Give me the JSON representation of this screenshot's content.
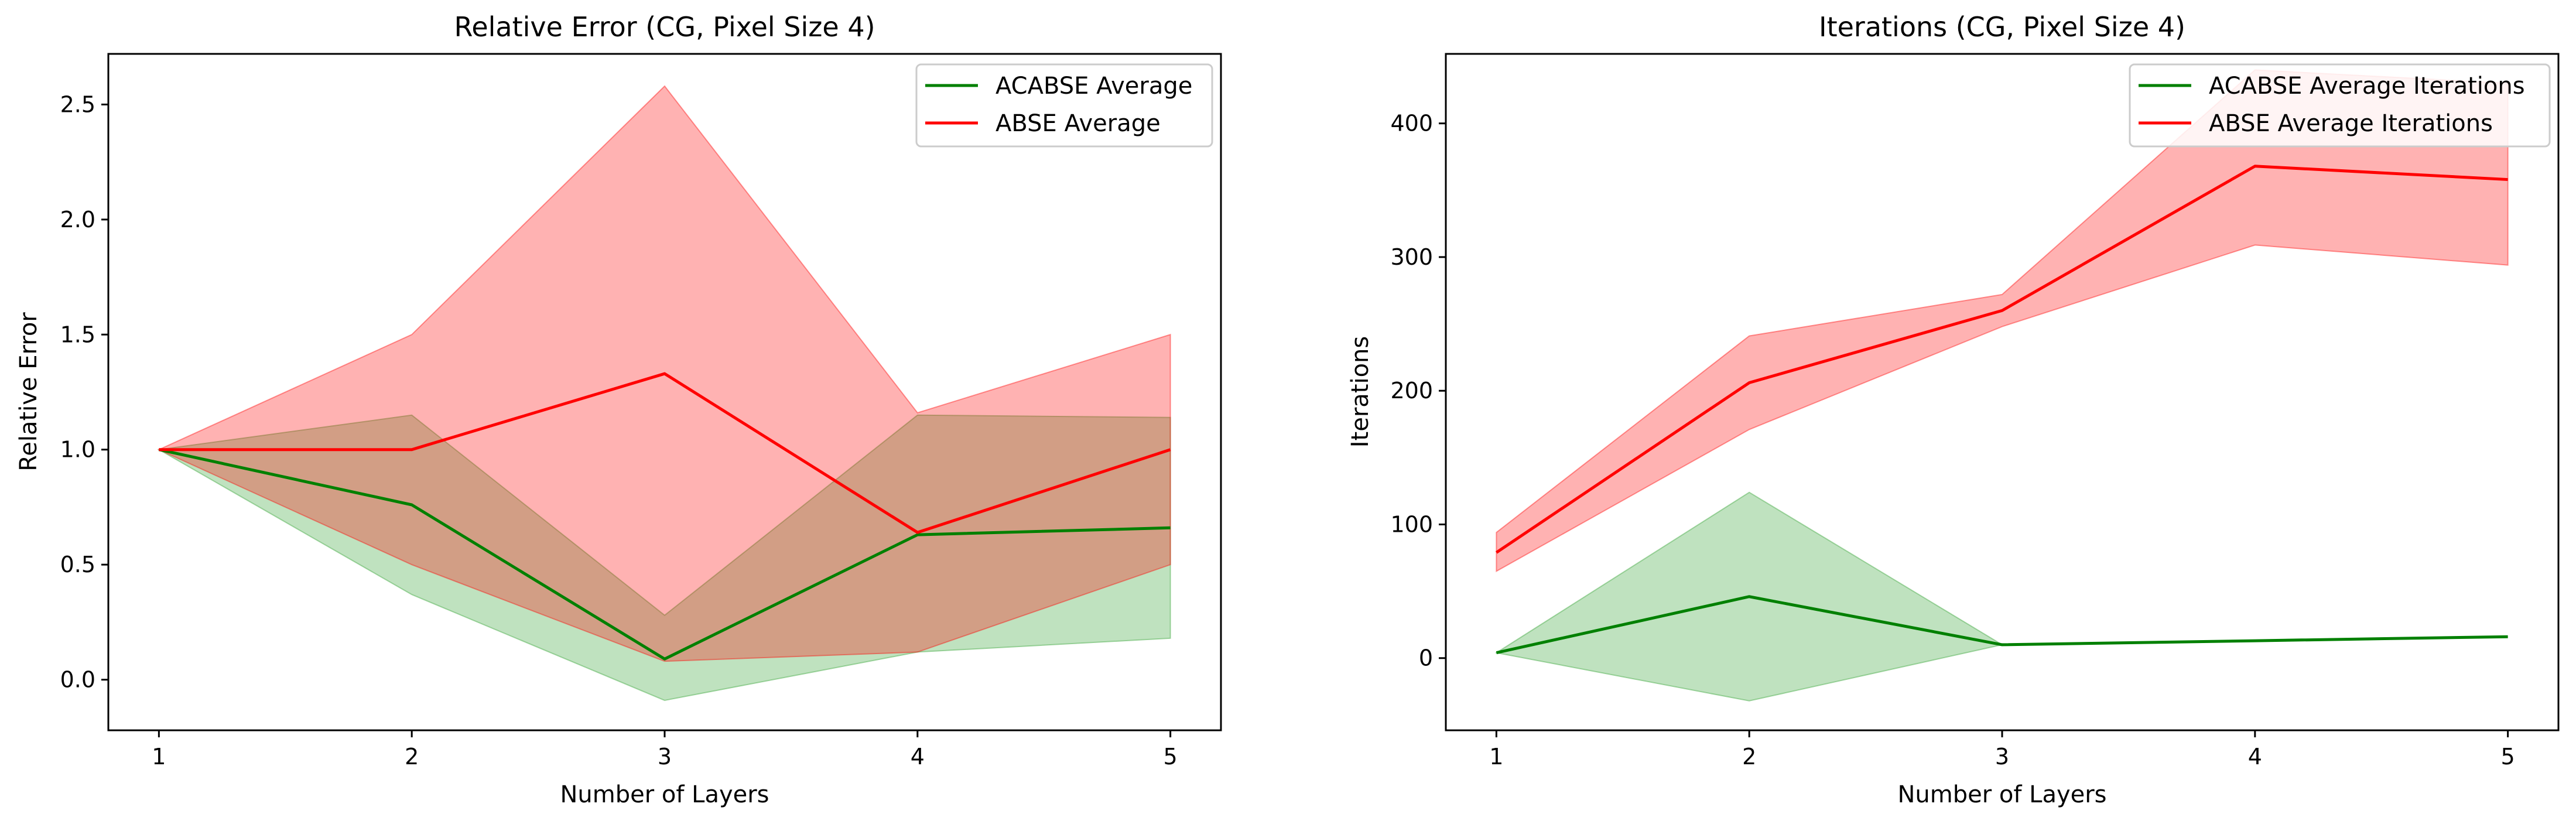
{
  "chart_data": [
    {
      "type": "line",
      "title": "Relative Error (CG, Pixel Size 4)",
      "xlabel": "Number of Layers",
      "ylabel": "Relative Error",
      "x": [
        1,
        2,
        3,
        4,
        5
      ],
      "xlim": [
        0.8,
        5.2
      ],
      "ylim": [
        -0.22,
        2.72
      ],
      "xticks": [
        1,
        2,
        3,
        4,
        5
      ],
      "yticks": [
        0.0,
        0.5,
        1.0,
        1.5,
        2.0,
        2.5
      ],
      "ytick_labels": [
        "0.0",
        "0.5",
        "1.0",
        "1.5",
        "2.0",
        "2.5"
      ],
      "grid": false,
      "legend_position": "top-right",
      "series": [
        {
          "name": "ACABSE Average",
          "color": "#008000",
          "band_color": "#2ca02c",
          "values": [
            1.0,
            0.76,
            0.09,
            0.63,
            0.66
          ],
          "lower": [
            1.0,
            0.37,
            -0.09,
            0.12,
            0.18
          ],
          "upper": [
            1.0,
            1.15,
            0.28,
            1.15,
            1.14
          ]
        },
        {
          "name": "ABSE Average",
          "color": "#ff0000",
          "band_color": "#ff0000",
          "values": [
            1.0,
            1.0,
            1.33,
            0.64,
            1.0
          ],
          "lower": [
            1.0,
            0.5,
            0.08,
            0.12,
            0.5
          ],
          "upper": [
            1.0,
            1.5,
            2.58,
            1.16,
            1.5
          ]
        }
      ]
    },
    {
      "type": "line",
      "title": "Iterations (CG, Pixel Size 4)",
      "xlabel": "Number of Layers",
      "ylabel": "Iterations",
      "x": [
        1,
        2,
        3,
        4,
        5
      ],
      "xlim": [
        0.8,
        5.2
      ],
      "ylim": [
        -54,
        452
      ],
      "xticks": [
        1,
        2,
        3,
        4,
        5
      ],
      "yticks": [
        0,
        100,
        200,
        300,
        400
      ],
      "ytick_labels": [
        "0",
        "100",
        "200",
        "300",
        "400"
      ],
      "grid": false,
      "legend_position": "top-right",
      "series": [
        {
          "name": "ACABSE Average Iterations",
          "color": "#008000",
          "band_color": "#2ca02c",
          "values": [
            4,
            46,
            10,
            13,
            16
          ],
          "lower": [
            4,
            -32,
            10,
            13,
            16
          ],
          "upper": [
            4,
            124,
            10,
            13,
            16
          ]
        },
        {
          "name": "ABSE Average Iterations",
          "color": "#ff0000",
          "band_color": "#ff0000",
          "values": [
            79,
            206,
            260,
            368,
            358
          ],
          "lower": [
            65,
            171,
            248,
            309,
            294
          ],
          "upper": [
            94,
            241,
            272,
            440,
            430
          ]
        }
      ]
    }
  ]
}
